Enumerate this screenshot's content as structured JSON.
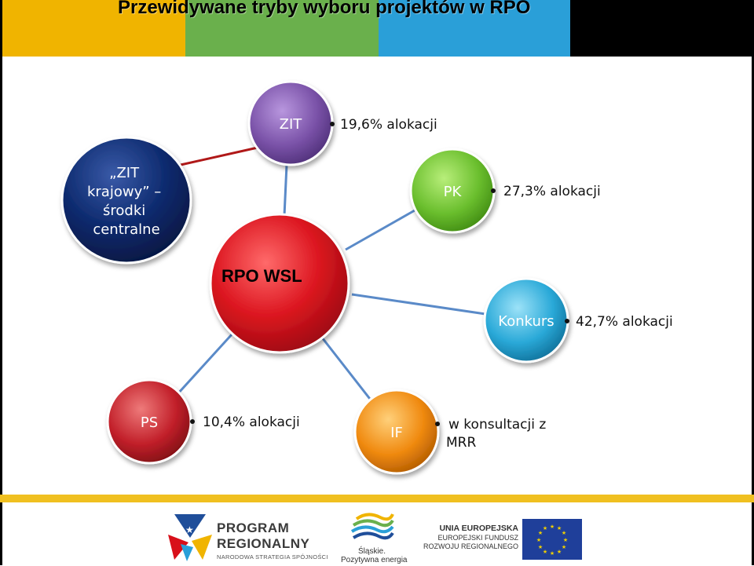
{
  "header": {
    "title": "Przewidywane tryby wyboru projektów w RPO",
    "bar_colors": [
      "#f0b400",
      "#6ab04c",
      "#2a9fd8",
      "#000000"
    ]
  },
  "diagram": {
    "center": {
      "label": "RPO WSL",
      "color": "#d8101a"
    },
    "nodes": [
      {
        "id": "zit",
        "label": "ZIT",
        "color": "#7a52a8",
        "bullet": "19,6% alokacji"
      },
      {
        "id": "zit-krajowy",
        "label_lines": [
          "„ZIT",
          "krajowy” –",
          "środki",
          "centralne"
        ],
        "color": "#0d2a6e"
      },
      {
        "id": "pk",
        "label": "PK",
        "color": "#6bbf2e",
        "bullet": "27,3% alokacji"
      },
      {
        "id": "konkurs",
        "label": "Konkurs",
        "color": "#2aa9d8",
        "bullet": "42,7% alokacji"
      },
      {
        "id": "ps",
        "label": "PS",
        "color": "#c2202a",
        "bullet": "10,4% alokacji"
      },
      {
        "id": "if",
        "label": "IF",
        "color": "#f08a10",
        "bullet_lines": [
          "w konsultacji z",
          "MRR"
        ]
      }
    ],
    "connector_color": "#5a8ac8",
    "zit_link_color": "#b01818"
  },
  "footer": {
    "program_logo": {
      "line1": "PROGRAM",
      "line2": "REGIONALNY",
      "line3": "NARODOWA STRATEGIA SPÓJNOŚCI"
    },
    "slaskie_logo": {
      "line1": "Śląskie.",
      "line2": "Pozytywna energia"
    },
    "ue_logo": {
      "line1": "UNIA EUROPEJSKA",
      "line2": "EUROPEJSKI FUNDUSZ",
      "line3": "ROZWOJU REGIONALNEGO"
    },
    "bottom_bar_color": "#f0c020"
  }
}
